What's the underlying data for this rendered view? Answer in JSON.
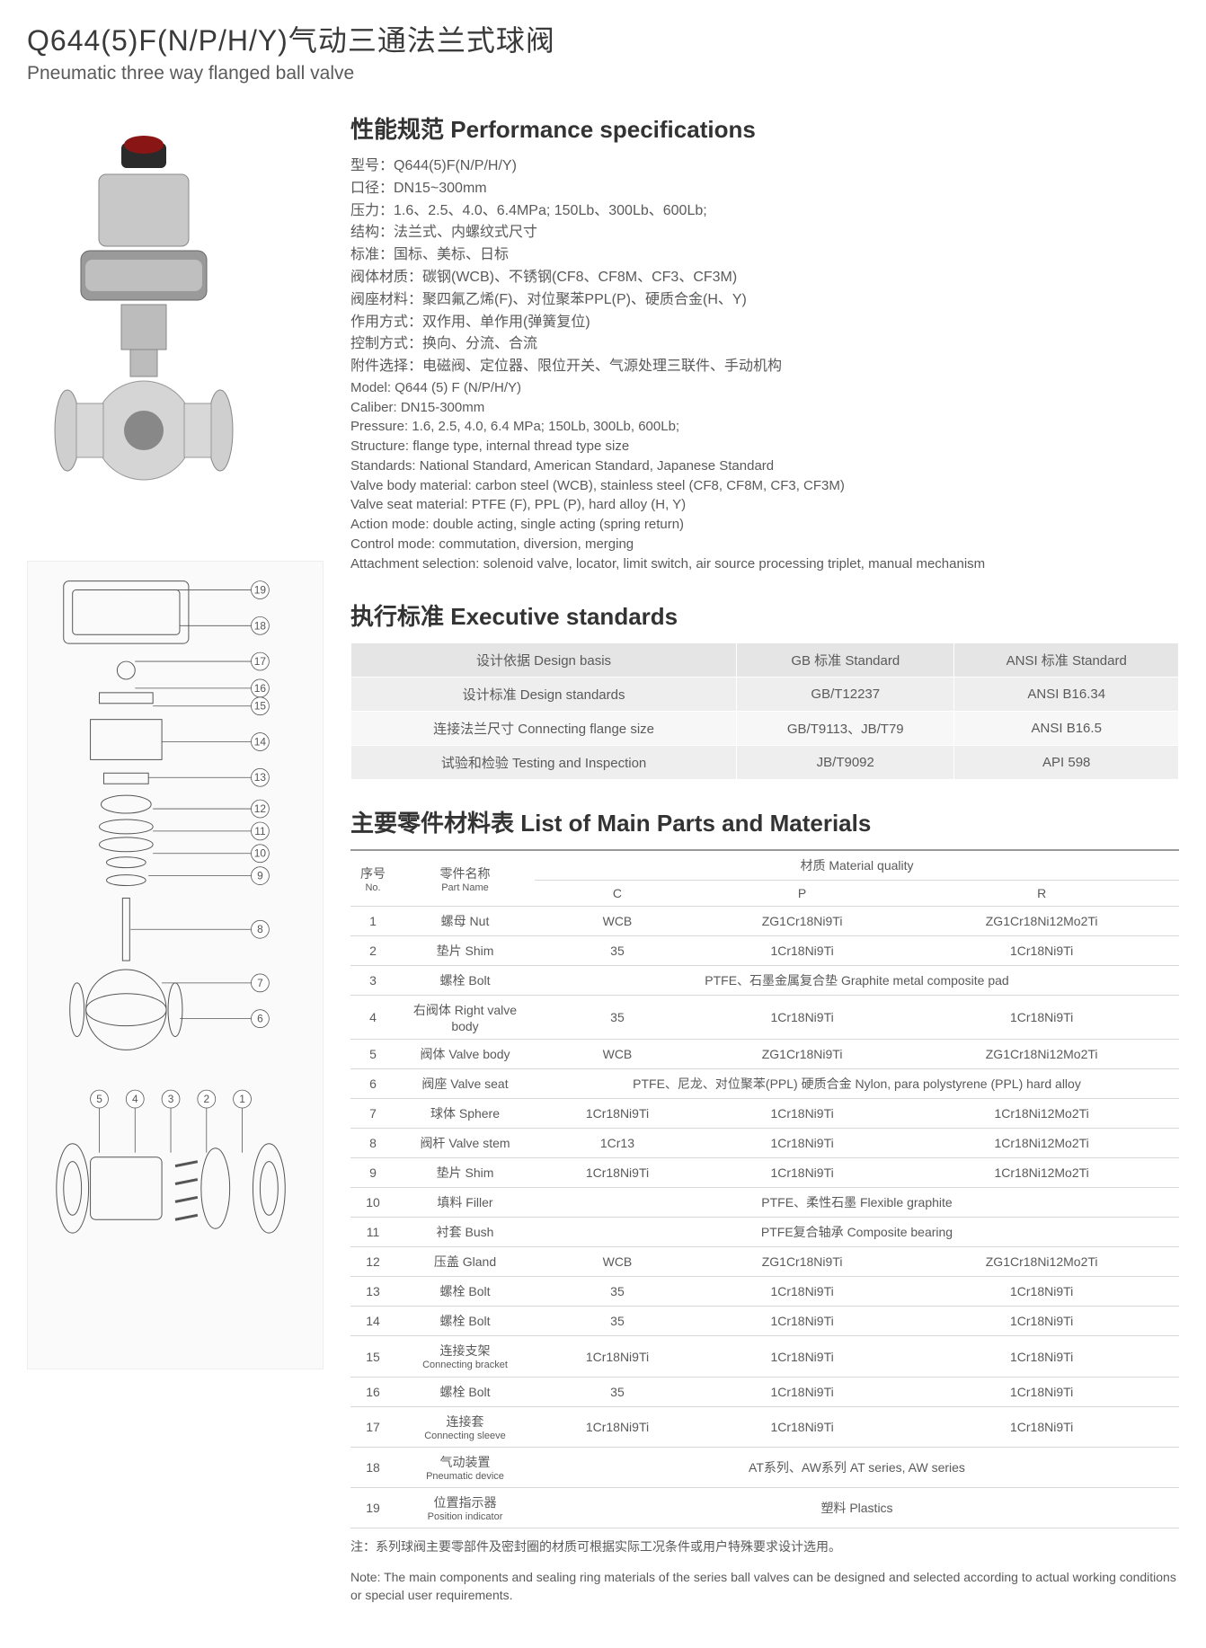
{
  "title": {
    "cn": "Q644(5)F(N/P/H/Y)气动三通法兰式球阀",
    "en": "Pneumatic three way flanged ball valve"
  },
  "performance": {
    "heading": "性能规范 Performance specifications",
    "lines_cn": [
      "型号：Q644(5)F(N/P/H/Y)",
      "口径：DN15~300mm",
      "压力：1.6、2.5、4.0、6.4MPa; 150Lb、300Lb、600Lb;",
      "结构：法兰式、内螺纹式尺寸",
      "标准：国标、美标、日标",
      "阀体材质：碳钢(WCB)、不锈钢(CF8、CF8M、CF3、CF3M)",
      "阀座材料：聚四氟乙烯(F)、对位聚苯PPL(P)、硬质合金(H、Y)",
      "作用方式：双作用、单作用(弹簧复位)",
      "控制方式：换向、分流、合流",
      "附件选择：电磁阀、定位器、限位开关、气源处理三联件、手动机构"
    ],
    "lines_en": [
      "Model: Q644 (5) F (N/P/H/Y)",
      "Caliber: DN15-300mm",
      "Pressure: 1.6, 2.5, 4.0, 6.4 MPa; 150Lb, 300Lb, 600Lb;",
      "Structure: flange type, internal thread type size",
      "Standards: National Standard, American Standard, Japanese Standard",
      "Valve body material: carbon steel (WCB), stainless steel (CF8, CF8M, CF3, CF3M)",
      "Valve seat material: PTFE (F), PPL (P), hard alloy (H, Y)",
      "Action mode: double acting, single acting (spring return)",
      "Control mode: commutation, diversion, merging",
      "Attachment selection: solenoid valve, locator, limit switch, air source processing triplet, manual mechanism"
    ]
  },
  "executive": {
    "heading": "执行标准 Executive standards",
    "header": [
      "设计依据 Design basis",
      "GB 标准 Standard",
      "ANSI 标准 Standard"
    ],
    "rows": [
      [
        "设计标准 Design standards",
        "GB/T12237",
        "ANSI B16.34"
      ],
      [
        "连接法兰尺寸 Connecting flange size",
        "GB/T9113、JB/T79",
        "ANSI B16.5"
      ],
      [
        "试验和检验 Testing and Inspection",
        "JB/T9092",
        "API 598"
      ]
    ]
  },
  "parts": {
    "heading": "主要零件材料表 List of Main Parts and Materials",
    "col_headers": {
      "no_cn": "序号",
      "no_en": "No.",
      "name_cn": "零件名称",
      "name_en": "Part Name",
      "material": "材质 Material quality",
      "c": "C",
      "p": "P",
      "r": "R"
    },
    "rows": [
      {
        "no": "1",
        "name": "螺母 Nut",
        "c": "WCB",
        "p": "ZG1Cr18Ni9Ti",
        "r": "ZG1Cr18Ni12Mo2Ti"
      },
      {
        "no": "2",
        "name": "垫片 Shim",
        "c": "35",
        "p": "1Cr18Ni9Ti",
        "r": "1Cr18Ni9Ti"
      },
      {
        "no": "3",
        "name": "螺栓 Bolt",
        "span": "PTFE、石墨金属复合垫 Graphite metal composite pad"
      },
      {
        "no": "4",
        "name": "右阀体 Right valve body",
        "c": "35",
        "p": "1Cr18Ni9Ti",
        "r": "1Cr18Ni9Ti"
      },
      {
        "no": "5",
        "name": "阀体 Valve body",
        "c": "WCB",
        "p": "ZG1Cr18Ni9Ti",
        "r": "ZG1Cr18Ni12Mo2Ti"
      },
      {
        "no": "6",
        "name": "阀座 Valve seat",
        "span": "PTFE、尼龙、对位聚苯(PPL) 硬质合金 Nylon, para polystyrene (PPL) hard alloy"
      },
      {
        "no": "7",
        "name": "球体 Sphere",
        "c": "1Cr18Ni9Ti",
        "p": "1Cr18Ni9Ti",
        "r": "1Cr18Ni12Mo2Ti"
      },
      {
        "no": "8",
        "name": "阀杆 Valve stem",
        "c": "1Cr13",
        "p": "1Cr18Ni9Ti",
        "r": "1Cr18Ni12Mo2Ti"
      },
      {
        "no": "9",
        "name": "垫片 Shim",
        "c": "1Cr18Ni9Ti",
        "p": "1Cr18Ni9Ti",
        "r": "1Cr18Ni12Mo2Ti"
      },
      {
        "no": "10",
        "name": "填料 Filler",
        "span": "PTFE、柔性石墨 Flexible graphite"
      },
      {
        "no": "11",
        "name": "衬套 Bush",
        "span": "PTFE复合轴承 Composite bearing"
      },
      {
        "no": "12",
        "name": "压盖 Gland",
        "c": "WCB",
        "p": "ZG1Cr18Ni9Ti",
        "r": "ZG1Cr18Ni12Mo2Ti"
      },
      {
        "no": "13",
        "name": "螺栓 Bolt",
        "c": "35",
        "p": "1Cr18Ni9Ti",
        "r": "1Cr18Ni9Ti"
      },
      {
        "no": "14",
        "name": "螺栓 Bolt",
        "c": "35",
        "p": "1Cr18Ni9Ti",
        "r": "1Cr18Ni9Ti"
      },
      {
        "no": "15",
        "name_cn": "连接支架",
        "name_en": "Connecting bracket",
        "c": "1Cr18Ni9Ti",
        "p": "1Cr18Ni9Ti",
        "r": "1Cr18Ni9Ti"
      },
      {
        "no": "16",
        "name": "螺栓 Bolt",
        "c": "35",
        "p": "1Cr18Ni9Ti",
        "r": "1Cr18Ni9Ti"
      },
      {
        "no": "17",
        "name_cn": "连接套",
        "name_en": "Connecting sleeve",
        "c": "1Cr18Ni9Ti",
        "p": "1Cr18Ni9Ti",
        "r": "1Cr18Ni9Ti"
      },
      {
        "no": "18",
        "name_cn": "气动装置",
        "name_en": "Pneumatic device",
        "span": "AT系列、AW系列 AT series, AW series"
      },
      {
        "no": "19",
        "name_cn": "位置指示器",
        "name_en": "Position indicator",
        "span": "塑料 Plastics"
      }
    ]
  },
  "note": {
    "cn": "注：系列球阀主要零部件及密封圈的材质可根据实际工况条件或用户特殊要求设计选用。",
    "en": "Note: The main components and sealing ring materials of the series ball valves can be designed and selected according to actual working conditions or special user requirements."
  },
  "diagram_labels": [
    "1",
    "2",
    "3",
    "4",
    "5",
    "6",
    "7",
    "8",
    "9",
    "10",
    "11",
    "12",
    "13",
    "14",
    "15",
    "16",
    "17",
    "18",
    "19"
  ],
  "colors": {
    "text": "#5a5a5a",
    "heading": "#333333",
    "bg_alt1": "#eeeeee",
    "bg_alt2": "#f7f7f7",
    "border": "#d8d8d8"
  }
}
